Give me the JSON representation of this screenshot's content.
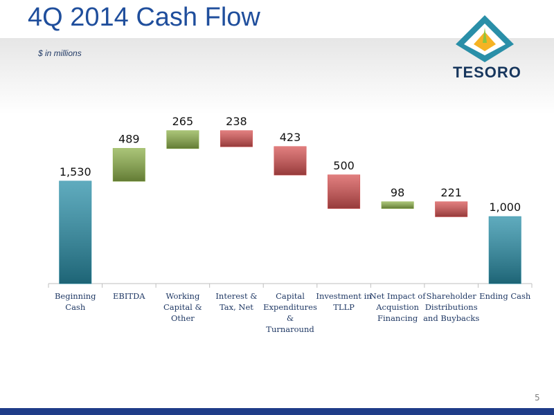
{
  "chart_data": {
    "type": "waterfall",
    "title": "4Q 2014 Cash Flow",
    "subtitle": "$ in millions",
    "categories": [
      "Beginning Cash",
      "EBITDA",
      "Working Capital & Other",
      "Interest & Tax, Net",
      "Capital Expenditures & Turnaround",
      "Investment in TLLP",
      "Net Impact of Acquistion Financing",
      "Shareholder Distributions and Buybacks",
      "Ending Cash"
    ],
    "values": [
      1530,
      489,
      265,
      -238,
      -423,
      -500,
      98,
      -221,
      1000
    ],
    "value_labels": [
      "1,530",
      "489",
      "265",
      "238",
      "423",
      "500",
      "98",
      "221",
      "1,000"
    ],
    "measures": [
      "total",
      "relative",
      "relative",
      "relative",
      "relative",
      "relative",
      "relative",
      "relative",
      "total"
    ],
    "total_color": "#2a8fa8",
    "increase_color": "#8db04a",
    "decrease_color": "#d65353"
  },
  "logo": "TESORO",
  "page_number": "5"
}
